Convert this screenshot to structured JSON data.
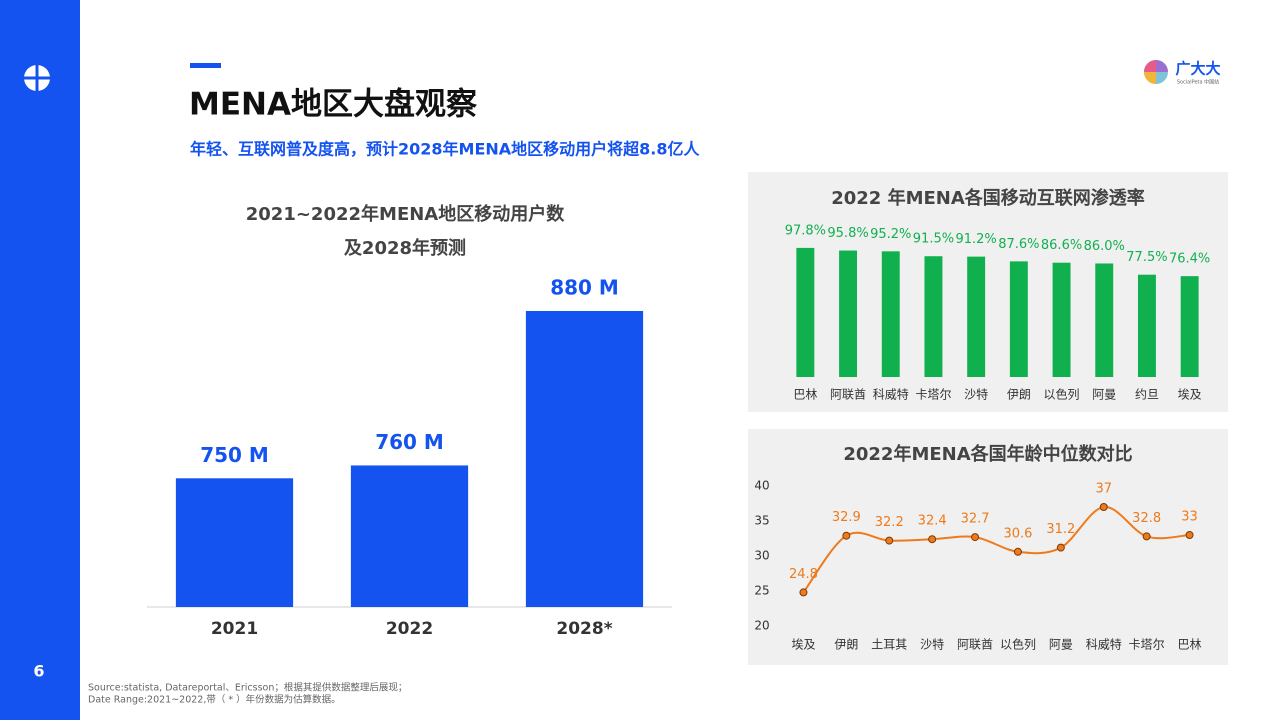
{
  "page_number": "6",
  "logo": {
    "name": "广大大",
    "tagline": "SocialPeta 中国站"
  },
  "header": {
    "title": "MENA地区大盘观察",
    "subtitle": "年轻、互联网普及度高，预计2028年MENA地区移动用户将超8.8亿人"
  },
  "chart_data": [
    {
      "type": "bar",
      "title": [
        "2021~2022年MENA地区移动用户数",
        "及2028年预测"
      ],
      "categories": [
        "2021",
        "2022",
        "2028*"
      ],
      "values": [
        750,
        760,
        880
      ],
      "value_labels": [
        "750 M",
        "760 M",
        "880 M"
      ],
      "color": "#1553f0",
      "ylim": [
        650,
        880
      ]
    },
    {
      "type": "bar",
      "title": "2022 年MENA各国移动互联网渗透率",
      "categories": [
        "巴林",
        "阿联酋",
        "科威特",
        "卡塔尔",
        "沙特",
        "伊朗",
        "以色列",
        "阿曼",
        "约旦",
        "埃及"
      ],
      "values": [
        97.8,
        95.8,
        95.2,
        91.5,
        91.2,
        87.6,
        86.6,
        86.0,
        77.5,
        76.4
      ],
      "value_labels": [
        "97.8%",
        "95.8%",
        "95.2%",
        "91.5%",
        "91.2%",
        "87.6%",
        "86.6%",
        "86.0%",
        "77.5%",
        "76.4%"
      ],
      "color": "#11b04f",
      "ylim": [
        0,
        100
      ]
    },
    {
      "type": "line",
      "title": "2022年MENA各国年龄中位数对比",
      "categories": [
        "埃及",
        "伊朗",
        "土耳其",
        "沙特",
        "阿联酋",
        "以色列",
        "阿曼",
        "科威特",
        "卡塔尔",
        "巴林"
      ],
      "values": [
        24.8,
        32.9,
        32.2,
        32.4,
        32.7,
        30.6,
        31.2,
        37,
        32.8,
        33
      ],
      "color": "#ee7a1c",
      "ylim": [
        20,
        40
      ],
      "yticks": [
        20,
        25,
        30,
        35,
        40
      ]
    }
  ],
  "footer": {
    "lines": [
      "Source:statista, Datareportal、Ericsson；根据其提供数据整理后展现；",
      "Date Range:2021~2022,带（ * ）年份数据为估算数据。"
    ]
  }
}
